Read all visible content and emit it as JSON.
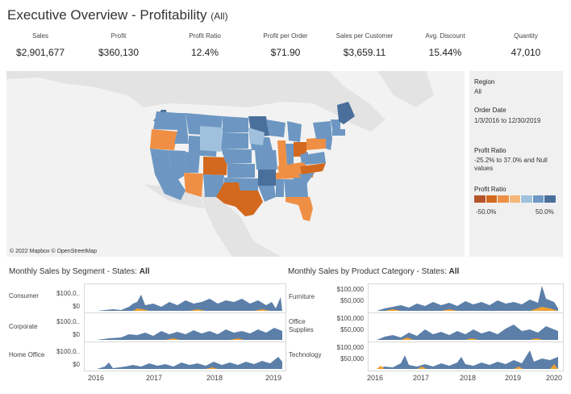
{
  "header": {
    "title": "Executive Overview - Profitability",
    "filter": "(All)"
  },
  "kpis": [
    {
      "label": "Sales",
      "value": "$2,901,677"
    },
    {
      "label": "Profit",
      "value": "$360,130"
    },
    {
      "label": "Profit Ratio",
      "value": "12.4%"
    },
    {
      "label": "Profit per Order",
      "value": "$71.90"
    },
    {
      "label": "Sales per Customer",
      "value": "$3,659.11"
    },
    {
      "label": "Avg. Discount",
      "value": "15.44%"
    },
    {
      "label": "Quantity",
      "value": "47,010"
    }
  ],
  "map": {
    "credit": "© 2022 Mapbox © OpenStreetMap"
  },
  "filters": {
    "region_title": "Region",
    "region_value": "All",
    "date_title": "Order Date",
    "date_value": "1/3/2016 to 12/30/2019",
    "ratio_title": "Profit Ratio",
    "ratio_value": "-25.2% to 37.0% and Null values",
    "legend_title": "Profit Ratio",
    "legend_min": "-50.0%",
    "legend_max": "50.0%",
    "legend_colors": [
      "#b5542a",
      "#d2691e",
      "#ef8f45",
      "#f5b778",
      "#9fc1dd",
      "#6d97c2",
      "#4a6f9b"
    ]
  },
  "colors": {
    "sales": "#5b7fa8",
    "profit": "#f0a030"
  },
  "segment_panel": {
    "title": "Monthly Sales by Segment - States:",
    "state": "All",
    "rows": [
      {
        "label": "Consumer",
        "ytop": "$100,0..",
        "ybot": "$0"
      },
      {
        "label": "Corporate",
        "ytop": "$100,0..",
        "ybot": "$0"
      },
      {
        "label": "Home Office",
        "ytop": "$100,0..",
        "ybot": "$0"
      }
    ],
    "years": [
      "2016",
      "2017",
      "2018",
      "2019"
    ]
  },
  "category_panel": {
    "title": "Monthly Sales by Product Category - States:",
    "state": "All",
    "rows": [
      {
        "label": "Furniture",
        "ytop": "$100,000",
        "ybot": "$50,000"
      },
      {
        "label": "Office Supplies",
        "ytop": "$100,000",
        "ybot": "$50,000"
      },
      {
        "label": "Technology",
        "ytop": "$100,000",
        "ybot": "$50,000"
      }
    ],
    "years": [
      "2016",
      "2017",
      "2018",
      "2019",
      "2020"
    ]
  }
}
